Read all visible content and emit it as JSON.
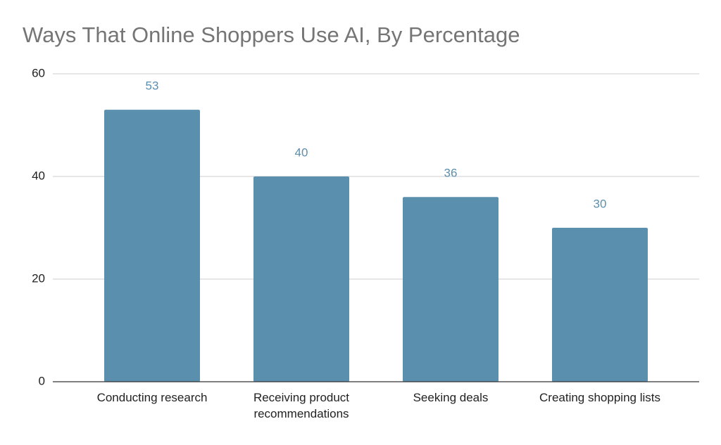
{
  "chart_data": {
    "type": "bar",
    "title": "Ways That Online Shoppers Use AI, By Percentage",
    "categories": [
      "Conducting research",
      "Receiving product recommendations",
      "Seeking deals",
      "Creating shopping lists"
    ],
    "values": [
      53,
      40,
      36,
      30
    ],
    "color": "#5b8fae",
    "ylim": [
      0,
      60
    ],
    "yticks": [
      0,
      20,
      40,
      60
    ],
    "grid": true
  }
}
